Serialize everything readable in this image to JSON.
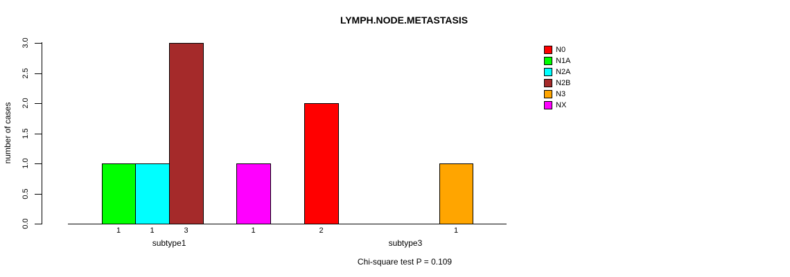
{
  "chart_data": {
    "type": "bar",
    "title": "LYMPH.NODE.METASTASIS",
    "ylabel": "number of cases",
    "xlabel": "",
    "ylim": [
      0,
      3
    ],
    "grid": false,
    "legend_position": "right",
    "yticks": [
      {
        "value": 0.0,
        "label": "0.0"
      },
      {
        "value": 0.5,
        "label": "0.5"
      },
      {
        "value": 1.0,
        "label": "1.0"
      },
      {
        "value": 1.5,
        "label": "1.5"
      },
      {
        "value": 2.0,
        "label": "2.0"
      },
      {
        "value": 2.5,
        "label": "2.5"
      },
      {
        "value": 3.0,
        "label": "3.0"
      }
    ],
    "categories": [
      "N0",
      "N1A",
      "N2A",
      "N2B",
      "N3",
      "NX"
    ],
    "groups": [
      {
        "name": "subtype1",
        "values": [
          0,
          1,
          1,
          3,
          0,
          1
        ]
      },
      {
        "name": "subtype3",
        "values": [
          2,
          0,
          0,
          0,
          1,
          0
        ]
      }
    ],
    "bar_value_labels": [
      "1",
      "1",
      "3",
      "1",
      "2",
      "1"
    ],
    "footnote": "Chi-square test P = 0.109"
  },
  "colors": {
    "N0": "#FF0000",
    "N1A": "#00FF00",
    "N2A": "#00FFFF",
    "N2B": "#A52A2A",
    "N3": "#FFA500",
    "NX": "#FF00FF",
    "axis": "#000000",
    "text": "#000000",
    "background": "#FFFFFF"
  },
  "legend": {
    "items": [
      {
        "label": "N0",
        "color": "#FF0000"
      },
      {
        "label": "N1A",
        "color": "#00FF00"
      },
      {
        "label": "N2A",
        "color": "#00FFFF"
      },
      {
        "label": "N2B",
        "color": "#A52A2A"
      },
      {
        "label": "N3",
        "color": "#FFA500"
      },
      {
        "label": "NX",
        "color": "#FF00FF"
      }
    ]
  }
}
